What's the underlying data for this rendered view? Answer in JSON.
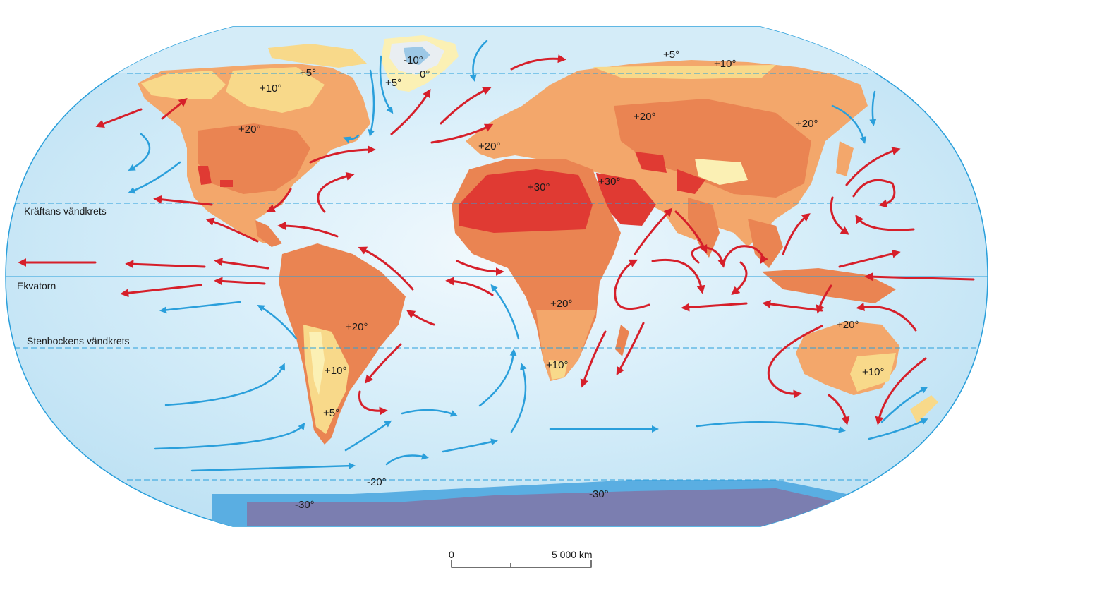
{
  "lines": {
    "cancer": "Kräftans vändkrets",
    "equator": "Ekvatorn",
    "capricorn": "Stenbockens vändkrets"
  },
  "temps": {
    "greenland_m10": "-10°",
    "greenland_0": "0°",
    "greenland_p5": "+5°",
    "alaska_p5": "+5°",
    "canada_p10": "+10°",
    "na_p20": "+20°",
    "siberia_p5": "+5°",
    "siberia_p10": "+10°",
    "russia_p20": "+20°",
    "east_asia_p20": "+20°",
    "iberia_p20": "+20°",
    "sahara_p30": "+30°",
    "arabia_p30": "+30°",
    "africa_p20": "+20°",
    "south_africa_p10": "+10°",
    "brazil_p20": "+20°",
    "andes_p10": "+10°",
    "patagonia_p5": "+5°",
    "australia_p20": "+20°",
    "australia_p10": "+10°",
    "antarctic_m20": "-20°",
    "antarctica_m30_w": "-30°",
    "antarctica_m30_e": "-30°"
  },
  "scale": {
    "start": "0",
    "end": "5 000 km"
  },
  "colors": {
    "ocean": "#c6e5f5",
    "land_base": "#f3a76b",
    "land_warm": "#ea8452",
    "land_hot": "#e03a33",
    "land_cool": "#f8d98a",
    "land_cold": "#fbf0b4",
    "ice": "#7b7eb0",
    "cold_current": "#2a9fdb",
    "warm_current": "#d61f2a"
  }
}
